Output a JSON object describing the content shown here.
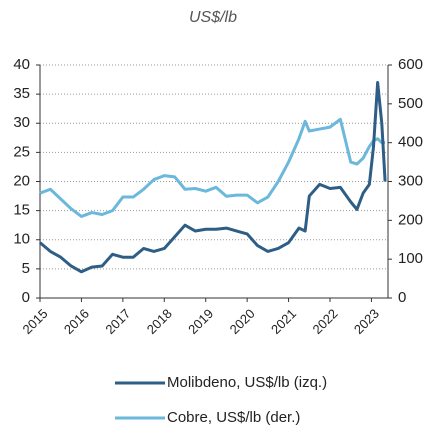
{
  "chart_data": {
    "type": "line",
    "title": "US$/lb",
    "x": [
      2015,
      2015.25,
      2015.5,
      2015.75,
      2016,
      2016.25,
      2016.5,
      2016.75,
      2017,
      2017.25,
      2017.5,
      2017.75,
      2018,
      2018.25,
      2018.5,
      2018.75,
      2019,
      2019.25,
      2019.5,
      2019.75,
      2020,
      2020.25,
      2020.5,
      2020.75,
      2021,
      2021.25,
      2021.4,
      2021.5,
      2021.75,
      2022,
      2022.25,
      2022.5,
      2022.65,
      2022.8,
      2022.95,
      2023.05,
      2023.15,
      2023.25,
      2023.33
    ],
    "series": [
      {
        "name": "Cobre, US$/lb (der.)",
        "color": "#6bb8dc",
        "axis": "y2",
        "values": [
          270,
          280,
          255,
          230,
          210,
          220,
          215,
          225,
          260,
          260,
          280,
          305,
          315,
          312,
          280,
          282,
          275,
          285,
          262,
          265,
          265,
          245,
          260,
          300,
          350,
          410,
          455,
          430,
          435,
          440,
          460,
          350,
          345,
          360,
          390,
          405,
          410,
          400,
          400
        ]
      },
      {
        "name": "Molibdeno, US$/lb (izq.)",
        "color": "#2e5e86",
        "values": [
          9.5,
          8,
          7,
          5.5,
          4.5,
          5.3,
          5.5,
          7.5,
          7,
          7,
          8.5,
          8,
          8.5,
          10.5,
          12.5,
          11.5,
          11.8,
          11.8,
          12,
          11.5,
          11,
          9,
          8,
          8.5,
          9.5,
          12,
          11.5,
          17.5,
          19.5,
          18.8,
          19,
          16.5,
          15.2,
          18,
          19.5,
          26,
          37,
          30,
          20
        ]
      }
    ],
    "xlim": [
      2015,
      2023.4
    ],
    "xticks": [
      2015,
      2016,
      2017,
      2018,
      2019,
      2020,
      2021,
      2022,
      2023
    ],
    "ylim": [
      0,
      40
    ],
    "yticks": [
      0,
      5,
      10,
      15,
      20,
      25,
      30,
      35,
      40
    ],
    "y2lim": [
      0,
      600
    ],
    "y2ticks": [
      0,
      100,
      200,
      300,
      400,
      500,
      600
    ],
    "grid": true
  }
}
